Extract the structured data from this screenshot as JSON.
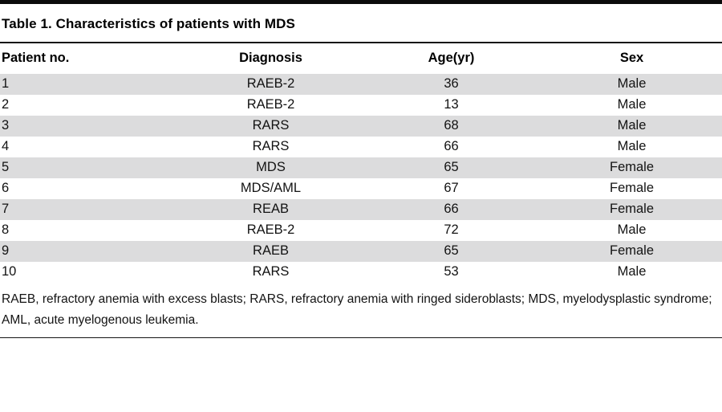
{
  "title": "Table 1. Characteristics of patients with MDS",
  "table": {
    "headers": [
      "Patient no.",
      "Diagnosis",
      "Age(yr)",
      "Sex"
    ],
    "rows": [
      [
        "1",
        "RAEB-2",
        "36",
        "Male"
      ],
      [
        "2",
        "RAEB-2",
        "13",
        "Male"
      ],
      [
        "3",
        "RARS",
        "68",
        "Male"
      ],
      [
        "4",
        "RARS",
        "66",
        "Male"
      ],
      [
        "5",
        "MDS",
        "65",
        "Female"
      ],
      [
        "6",
        "MDS/AML",
        "67",
        "Female"
      ],
      [
        "7",
        "REAB",
        "66",
        "Female"
      ],
      [
        "8",
        "RAEB-2",
        "72",
        "Male"
      ],
      [
        "9",
        "RAEB",
        "65",
        "Female"
      ],
      [
        "10",
        "RARS",
        "53",
        "Male"
      ]
    ]
  },
  "footnote": "RAEB, refractory anemia with excess blasts; RARS, refractory anemia with ringed sideroblasts; MDS, myelodysplastic syndrome; AML, acute myelogenous leukemia.",
  "colors": {
    "row_band": "#dcdcdd",
    "rule": "#161616",
    "text": "#131313"
  }
}
